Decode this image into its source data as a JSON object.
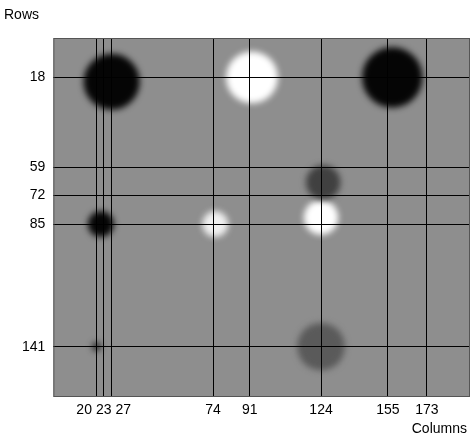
{
  "chart_data": {
    "type": "bubble",
    "x_label": "Columns",
    "y_label": "Rows",
    "x": [
      27,
      92,
      157,
      22,
      75,
      124,
      125,
      20,
      124
    ],
    "y": [
      20,
      18,
      18,
      85,
      85,
      82,
      66,
      141,
      141
    ],
    "sizes": [
      13,
      12,
      14,
      6,
      6,
      8,
      8,
      2,
      11
    ],
    "colors": [
      "#050505",
      "#ffffff",
      "#050505",
      "#050505",
      "#f0f0f0",
      "#ffffff",
      "#404040",
      "#202020",
      "#5a5a5a"
    ],
    "xlim": [
      0,
      193
    ],
    "ylim": [
      0,
      164
    ],
    "xticks": [
      20,
      23,
      27,
      74,
      91,
      124,
      155,
      173
    ],
    "yticks": [
      18,
      59,
      72,
      85,
      141
    ],
    "grid": true
  }
}
